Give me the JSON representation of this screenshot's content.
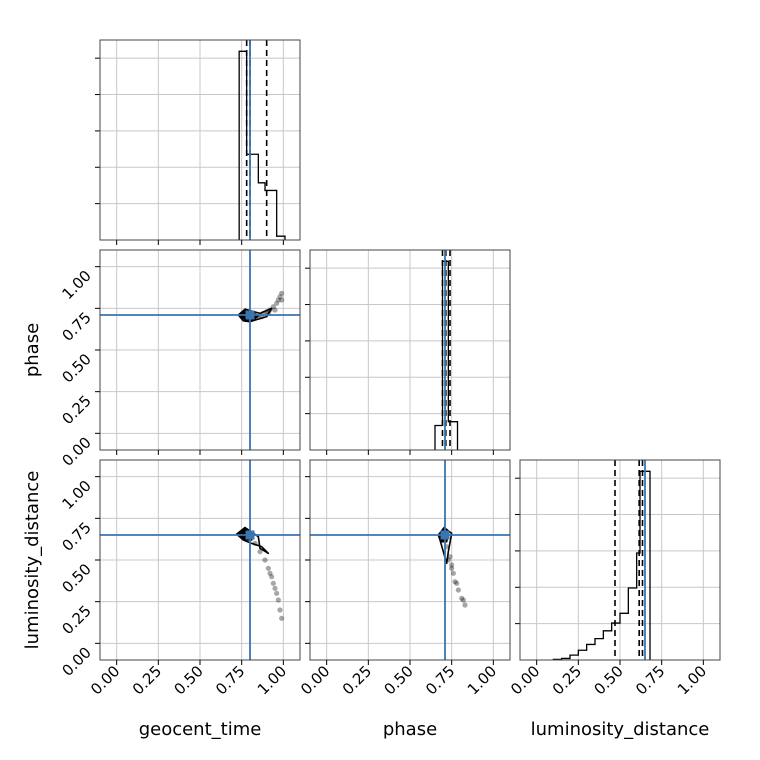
{
  "chart_data": {
    "type": "corner",
    "parameters": [
      "geocent_time",
      "phase",
      "luminosity_distance"
    ],
    "truths": {
      "geocent_time": 0.8,
      "phase": 0.71,
      "luminosity_distance": 0.65
    },
    "true_color": "#3a75b0",
    "line_color": "#000000",
    "grid": true,
    "axis_range": [
      -0.1,
      1.1
    ],
    "tick_values": [
      0.0,
      0.25,
      0.5,
      0.75,
      1.0
    ],
    "tick_labels": [
      "0.00",
      "0.25",
      "0.50",
      "0.75",
      "1.00"
    ],
    "xlabels": [
      "geocent_time",
      "phase",
      "luminosity_distance"
    ],
    "ylabels": [
      "",
      "phase",
      "luminosity_distance"
    ],
    "histograms": {
      "geocent_time": {
        "bins": [
          [
            0.735,
            0.78,
            0.99
          ],
          [
            0.78,
            0.85,
            0.45
          ],
          [
            0.85,
            0.89,
            0.3
          ],
          [
            0.89,
            0.96,
            0.26
          ],
          [
            0.96,
            1.01,
            0.02
          ]
        ],
        "quantiles": [
          0.78,
          0.8,
          0.9
        ]
      },
      "phase": {
        "bins": [
          [
            0.65,
            0.695,
            0.13
          ],
          [
            0.695,
            0.73,
            1.0
          ],
          [
            0.73,
            0.785,
            0.15
          ]
        ],
        "quantiles": [
          0.695,
          0.715,
          0.74
        ]
      },
      "luminosity_distance": {
        "bins": [
          [
            0.1,
            0.15,
            0.003
          ],
          [
            0.15,
            0.2,
            0.008
          ],
          [
            0.2,
            0.25,
            0.025
          ],
          [
            0.25,
            0.3,
            0.05
          ],
          [
            0.3,
            0.35,
            0.08
          ],
          [
            0.35,
            0.4,
            0.11
          ],
          [
            0.4,
            0.45,
            0.15
          ],
          [
            0.45,
            0.5,
            0.19
          ],
          [
            0.5,
            0.55,
            0.24
          ],
          [
            0.55,
            0.6,
            0.37
          ],
          [
            0.6,
            0.62,
            0.55
          ],
          [
            0.62,
            0.68,
            0.97
          ]
        ],
        "quantiles": [
          0.47,
          0.615,
          0.635
        ]
      }
    },
    "scatter_2d": {
      "phase_vs_geocent_time": {
        "points": [
          [
            0.78,
            0.71
          ],
          [
            0.8,
            0.7
          ],
          [
            0.83,
            0.71
          ],
          [
            0.85,
            0.7
          ],
          [
            0.88,
            0.72
          ],
          [
            0.9,
            0.73
          ],
          [
            0.92,
            0.74
          ],
          [
            0.94,
            0.76
          ],
          [
            0.96,
            0.78
          ],
          [
            0.97,
            0.8
          ],
          [
            0.98,
            0.82
          ],
          [
            0.99,
            0.84
          ],
          [
            0.99,
            0.8
          ],
          [
            0.95,
            0.74
          ],
          [
            0.91,
            0.72
          ],
          [
            0.87,
            0.7
          ]
        ],
        "contours": [
          [
            [
              0.74,
              0.71
            ],
            [
              0.77,
              0.74
            ],
            [
              0.82,
              0.72
            ],
            [
              0.85,
              0.705
            ],
            [
              0.82,
              0.68
            ],
            [
              0.77,
              0.68
            ]
          ],
          [
            [
              0.73,
              0.71
            ],
            [
              0.77,
              0.745
            ],
            [
              0.86,
              0.72
            ],
            [
              0.93,
              0.75
            ],
            [
              0.9,
              0.7
            ],
            [
              0.8,
              0.67
            ],
            [
              0.76,
              0.675
            ]
          ]
        ]
      },
      "luminosity_distance_vs_geocent_time": {
        "points": [
          [
            0.78,
            0.66
          ],
          [
            0.8,
            0.64
          ],
          [
            0.83,
            0.6
          ],
          [
            0.86,
            0.55
          ],
          [
            0.89,
            0.5
          ],
          [
            0.91,
            0.45
          ],
          [
            0.93,
            0.4
          ],
          [
            0.95,
            0.33
          ],
          [
            0.97,
            0.26
          ],
          [
            0.98,
            0.2
          ],
          [
            0.99,
            0.15
          ],
          [
            0.96,
            0.3
          ],
          [
            0.94,
            0.36
          ],
          [
            0.92,
            0.42
          ]
        ],
        "contours": [
          [
            [
              0.73,
              0.66
            ],
            [
              0.77,
              0.69
            ],
            [
              0.82,
              0.66
            ],
            [
              0.81,
              0.62
            ],
            [
              0.77,
              0.62
            ]
          ],
          [
            [
              0.72,
              0.655
            ],
            [
              0.77,
              0.695
            ],
            [
              0.85,
              0.64
            ],
            [
              0.86,
              0.57
            ],
            [
              0.91,
              0.54
            ],
            [
              0.87,
              0.58
            ],
            [
              0.81,
              0.6
            ],
            [
              0.76,
              0.62
            ]
          ]
        ]
      },
      "luminosity_distance_vs_phase": {
        "points": [
          [
            0.7,
            0.64
          ],
          [
            0.72,
            0.58
          ],
          [
            0.74,
            0.52
          ],
          [
            0.75,
            0.47
          ],
          [
            0.76,
            0.42
          ],
          [
            0.77,
            0.37
          ],
          [
            0.79,
            0.32
          ],
          [
            0.81,
            0.27
          ],
          [
            0.83,
            0.23
          ],
          [
            0.82,
            0.26
          ],
          [
            0.78,
            0.36
          ],
          [
            0.75,
            0.45
          ],
          [
            0.73,
            0.5
          ]
        ],
        "contours": [
          [
            [
              0.68,
              0.65
            ],
            [
              0.705,
              0.69
            ],
            [
              0.73,
              0.66
            ],
            [
              0.72,
              0.61
            ],
            [
              0.69,
              0.61
            ]
          ],
          [
            [
              0.67,
              0.65
            ],
            [
              0.705,
              0.695
            ],
            [
              0.75,
              0.66
            ],
            [
              0.73,
              0.55
            ],
            [
              0.72,
              0.48
            ],
            [
              0.7,
              0.55
            ],
            [
              0.68,
              0.62
            ]
          ]
        ]
      }
    }
  }
}
